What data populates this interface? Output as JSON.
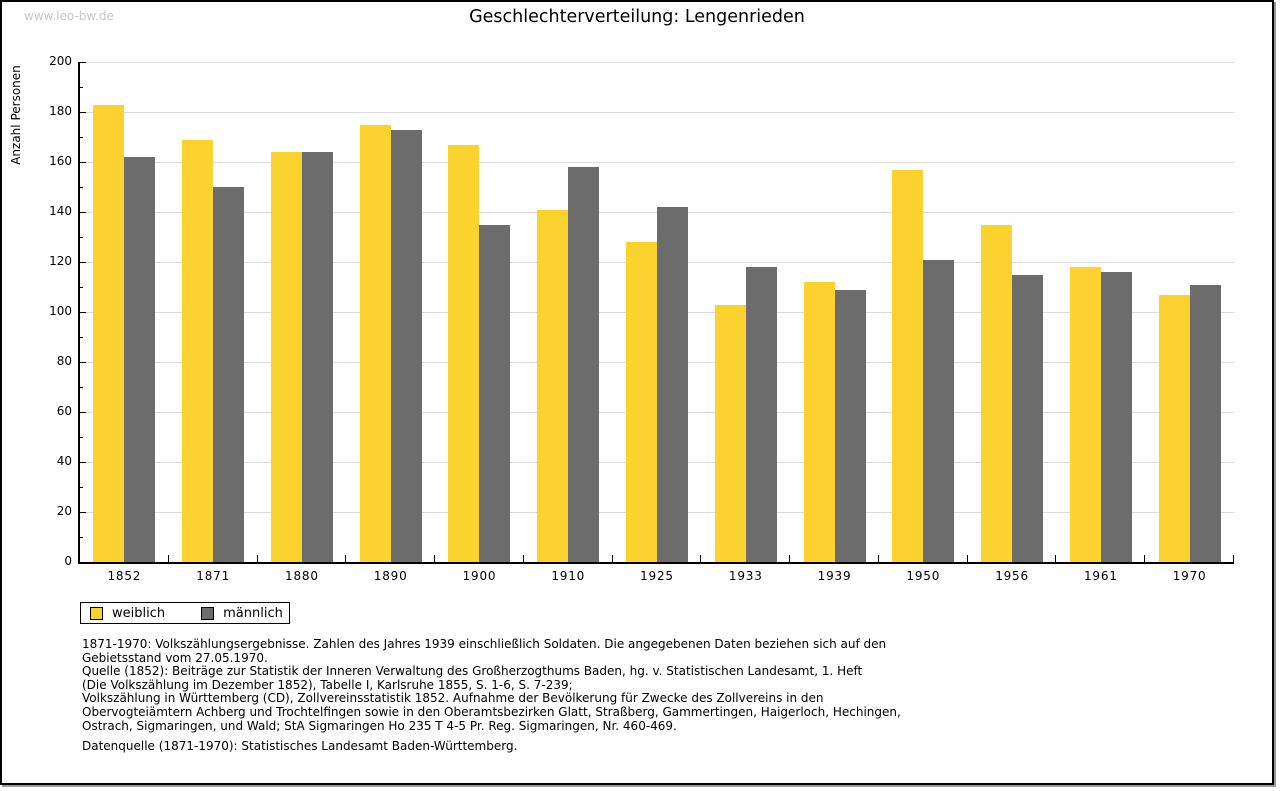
{
  "page": {
    "watermark": "www.leo-bw.de"
  },
  "chart_data": {
    "type": "bar",
    "title": "Geschlechterverteilung: Lengenrieden",
    "xlabel": "",
    "ylabel": "Anzahl Personen",
    "ylim": [
      0,
      200
    ],
    "ytick_step": 20,
    "yticks": [
      0,
      20,
      40,
      60,
      80,
      100,
      120,
      140,
      160,
      180,
      200
    ],
    "grid": true,
    "legend_position": "bottom-left",
    "categories": [
      "1852",
      "1871",
      "1880",
      "1890",
      "1900",
      "1910",
      "1925",
      "1933",
      "1939",
      "1950",
      "1956",
      "1961",
      "1970"
    ],
    "series": [
      {
        "name": "weiblich",
        "color": "#fcd32e",
        "values": [
          183,
          169,
          164,
          175,
          167,
          141,
          128,
          103,
          112,
          157,
          135,
          118,
          107
        ]
      },
      {
        "name": "männlich",
        "color": "#6c6c6c",
        "values": [
          162,
          150,
          164,
          173,
          135,
          158,
          142,
          118,
          109,
          121,
          115,
          116,
          111
        ]
      }
    ]
  },
  "colors": {
    "female_bar": "#fcd32e",
    "male_bar": "#6c6c6c",
    "gridline": "#dcdcdc",
    "watermark_text": "#c9c9c9",
    "axis": "#000000"
  },
  "footer": {
    "lines": [
      "1871-1970: Volkszählungsergebnisse. Zahlen des Jahres 1939 einschließlich Soldaten. Die angegebenen Daten beziehen sich auf den",
      "Gebietsstand vom 27.05.1970.",
      "Quelle (1852): Beiträge zur Statistik der Inneren Verwaltung des Großherzogthums Baden, hg. v. Statistischen Landesamt, 1. Heft",
      "(Die Volkszählung im Dezember 1852), Tabelle I, Karlsruhe 1855, S. 1-6, S. 7-239;",
      "Volkszählung in Württemberg (CD), Zollvereinsstatistik 1852. Aufnahme der Bevölkerung für Zwecke des Zollvereins in den",
      "Obervogteiämtern Achberg und Trochtelfingen sowie in den Oberamtsbezirken Glatt, Straßberg, Gammertingen, Haigerloch, Hechingen,",
      "Ostrach, Sigmaringen, und Wald; StA Sigmaringen Ho 235 T 4-5 Pr. Reg. Sigmaringen, Nr. 460-469."
    ],
    "datenquelle": "Datenquelle (1871-1970): Statistisches Landesamt Baden-Württemberg."
  }
}
